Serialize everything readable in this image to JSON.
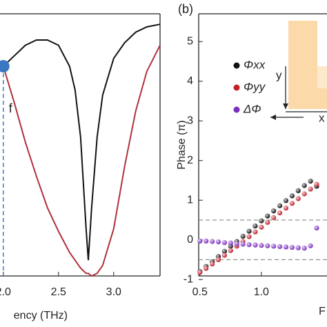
{
  "chart_data": [
    {
      "type": "line",
      "x_label": "ency (THz)",
      "x": [
        2.0,
        2.1,
        2.2,
        2.3,
        2.4,
        2.5,
        2.6,
        2.65,
        2.7,
        2.75,
        2.77,
        2.8,
        2.85,
        2.9,
        3.0,
        3.1,
        3.2,
        3.3,
        3.42
      ],
      "series": [
        {
          "color": "#111111",
          "values": [
            0.8,
            0.84,
            0.88,
            0.9,
            0.9,
            0.88,
            0.8,
            0.71,
            0.53,
            0.18,
            0.06,
            0.26,
            0.53,
            0.69,
            0.83,
            0.89,
            0.93,
            0.95,
            0.96
          ]
        },
        {
          "color": "#b0303a",
          "values": [
            0.8,
            0.66,
            0.51,
            0.38,
            0.26,
            0.17,
            0.09,
            0.06,
            0.03,
            0.01,
            0.01,
            0.0,
            0.01,
            0.04,
            0.18,
            0.42,
            0.63,
            0.78,
            0.88
          ]
        }
      ],
      "marker": {
        "x": 2.0,
        "y": 0.8,
        "label": "f",
        "color": "#3b78c4"
      },
      "xlim": [
        1.97,
        3.42
      ],
      "xticks": [
        {
          "value": 2.0,
          "label": "2.0"
        },
        2.5,
        {
          "value": 3.0,
          "label": "3.0"
        }
      ],
      "ylim": [
        0,
        1
      ]
    },
    {
      "type": "scatter",
      "panel_label": "(b)",
      "y_label": "Phase (π)",
      "x_label": "F",
      "x": [
        0.5,
        0.55,
        0.6,
        0.65,
        0.7,
        0.75,
        0.8,
        0.85,
        0.9,
        0.95,
        1.0,
        1.05,
        1.1,
        1.15,
        1.2,
        1.25,
        1.3,
        1.35,
        1.4,
        1.45
      ],
      "series": [
        {
          "name": "Φxx",
          "color": "#111111",
          "values": [
            -0.8,
            -0.67,
            -0.55,
            -0.42,
            -0.29,
            -0.16,
            -0.04,
            0.09,
            0.22,
            0.35,
            0.48,
            0.6,
            0.73,
            0.86,
            0.99,
            1.11,
            1.24,
            1.37,
            1.48,
            1.35
          ]
        },
        {
          "name": "Φyy",
          "color": "#c0202a",
          "values": [
            -0.82,
            -0.72,
            -0.61,
            -0.5,
            -0.39,
            -0.27,
            -0.16,
            -0.04,
            0.08,
            0.2,
            0.32,
            0.44,
            0.56,
            0.68,
            0.8,
            0.92,
            1.04,
            1.16,
            1.28,
            1.4
          ]
        },
        {
          "name": "ΔΦ",
          "color": "#7b2fbe",
          "values": [
            -0.03,
            -0.03,
            -0.04,
            -0.05,
            -0.07,
            -0.08,
            -0.1,
            -0.11,
            -0.12,
            -0.13,
            -0.14,
            -0.15,
            -0.16,
            -0.17,
            -0.18,
            -0.19,
            -0.2,
            -0.21,
            -0.15,
            0.3
          ]
        }
      ],
      "reference_lines": [
        0.5,
        -0.5
      ],
      "inset_labels": [
        "y",
        "x"
      ],
      "xlim": [
        0.49,
        1.54
      ],
      "xticks": [
        0.5,
        {
          "value": 1.0,
          "label": "1.0"
        }
      ],
      "ylim": [
        -0.91,
        5.7
      ],
      "yticks": [
        -1,
        0,
        1,
        2,
        3,
        4,
        5
      ]
    }
  ]
}
